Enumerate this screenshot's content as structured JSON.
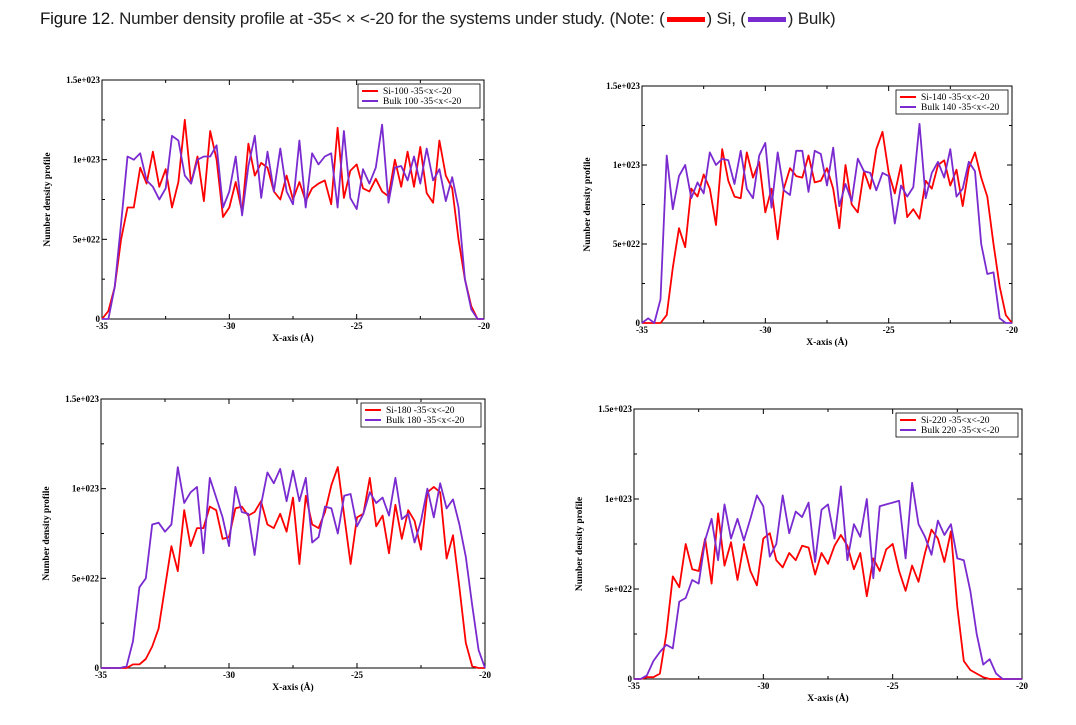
{
  "caption": {
    "figure_label": "Figure 12",
    "text_before": ". Number density profile at -35< × <-20 for the systems under study. (Note: (",
    "si_label": ") Si, (",
    "bulk_label": ") Bulk)"
  },
  "colors": {
    "si": "#ff0000",
    "bulk": "#7a2bd0"
  },
  "chart_data": [
    {
      "type": "line",
      "xlabel": "X-axis (Å)",
      "ylabel": "Number density profile",
      "xlim": [
        -35,
        -20
      ],
      "ylim": [
        0,
        1.5e+23
      ],
      "xticks": [
        -35,
        -30,
        -25,
        -20
      ],
      "xtick_labels": [
        "-35",
        "-30",
        "-25",
        "-20"
      ],
      "yticks": [
        0,
        5e+22,
        1e+23,
        1.5e+23
      ],
      "ytick_labels": [
        "0",
        "5e+022",
        "1e+023",
        "1.5e+023"
      ],
      "legend_position": "top-right",
      "x_step": 0.25,
      "value_unit": 1e+22,
      "series": [
        {
          "name": "Si-100 -35<x<-20",
          "color": "#ff0000",
          "values": [
            0,
            0.5,
            2,
            5,
            7,
            7,
            9.5,
            8.5,
            10.5,
            8.3,
            9.4,
            7,
            8.6,
            12.5,
            8.5,
            10.2,
            7.4,
            11.8,
            10,
            6.4,
            7,
            8.6,
            6.7,
            11,
            9,
            9.8,
            9.5,
            8,
            7.5,
            9,
            7.5,
            8.6,
            7.4,
            8.2,
            8.5,
            8.7,
            7.2,
            12,
            7.6,
            9.3,
            9.7,
            8.2,
            8,
            8.8,
            8,
            7.7,
            10,
            8.3,
            10.5,
            8.3,
            10.8,
            7.9,
            7.3,
            11.2,
            9,
            8.2,
            5,
            2.5,
            0.8,
            0,
            0
          ]
        },
        {
          "name": "Bulk 100 -35<x<-20",
          "color": "#7a2bd0",
          "values": [
            0,
            0,
            2,
            6,
            10.2,
            10,
            10.4,
            8.7,
            8.3,
            7.5,
            8.2,
            11.5,
            11.2,
            9,
            8.5,
            10,
            10.2,
            10.2,
            10.9,
            7,
            8,
            10.2,
            6.5,
            9.6,
            11.5,
            7.6,
            10.5,
            8,
            10.7,
            8,
            7.2,
            11.2,
            7,
            10.4,
            9.7,
            10.2,
            10.4,
            7,
            11.8,
            7.6,
            6.9,
            9.4,
            8.5,
            9.5,
            12.2,
            7.3,
            9.5,
            9.6,
            8.7,
            10.2,
            8.5,
            10.7,
            8.7,
            9.4,
            7.4,
            8.9,
            7,
            2.5,
            0.6,
            0,
            0
          ]
        }
      ]
    },
    {
      "type": "line",
      "xlabel": "X-axis (Å)",
      "ylabel": "Number density profile",
      "xlim": [
        -35,
        -20
      ],
      "ylim": [
        0,
        1.5e+23
      ],
      "xticks": [
        -35,
        -30,
        -25,
        -20
      ],
      "xtick_labels": [
        "-35",
        "-30",
        "-25",
        "-20"
      ],
      "yticks": [
        0,
        5e+22,
        1e+23,
        1.5e+23
      ],
      "ytick_labels": [
        "0",
        "5e+022",
        "1e+023",
        "1.5e+023"
      ],
      "legend_position": "top-right",
      "x_step": 0.25,
      "value_unit": 1e+22,
      "series": [
        {
          "name": "Si-140 -35<x<-20",
          "color": "#ff0000",
          "values": [
            0,
            0,
            0,
            0,
            0.5,
            3.5,
            6,
            4.8,
            8.5,
            8,
            9.4,
            8.5,
            6.2,
            11,
            9,
            8,
            7.9,
            10.8,
            9.2,
            10.2,
            7,
            8.5,
            5.3,
            8.5,
            9.8,
            9.3,
            9.2,
            10.6,
            8.9,
            9,
            9.8,
            8.5,
            6,
            10,
            7.5,
            7,
            9.6,
            8.5,
            11,
            12.1,
            9.5,
            8.2,
            10,
            6.7,
            7.2,
            6.6,
            9,
            8.5,
            10,
            10.3,
            8.7,
            9.7,
            7.4,
            9.8,
            10.8,
            9.2,
            8,
            5,
            2.3,
            0.5,
            0
          ]
        },
        {
          "name": "Bulk 140 -35<x<-20",
          "color": "#7a2bd0",
          "values": [
            0,
            0.3,
            0,
            1.5,
            10.6,
            7.2,
            9.3,
            10,
            7.9,
            8.9,
            8.2,
            10.8,
            10,
            10.4,
            10.3,
            8.8,
            10.9,
            8.5,
            7.9,
            10.6,
            11.4,
            7.3,
            10.8,
            8.4,
            8.1,
            10.9,
            10.9,
            8.3,
            10.9,
            10.7,
            8.7,
            11.1,
            7.4,
            8.8,
            7.7,
            10.4,
            9.6,
            9.5,
            8.4,
            9.5,
            9.3,
            6.3,
            8.7,
            8,
            8.6,
            12.6,
            7.9,
            9.5,
            10.2,
            9.2,
            11,
            8,
            8.5,
            10.2,
            9.6,
            5,
            3.1,
            3.2,
            0.3,
            0,
            0
          ]
        }
      ]
    },
    {
      "type": "line",
      "xlabel": "X-axis (Å)",
      "ylabel": "Number density profile",
      "xlim": [
        -35,
        -20
      ],
      "ylim": [
        0,
        1.5e+23
      ],
      "xticks": [
        -35,
        -30,
        -25,
        -20
      ],
      "xtick_labels": [
        "-35",
        "-30",
        "-25",
        "-20"
      ],
      "yticks": [
        0,
        5e+22,
        1e+23,
        1.5e+23
      ],
      "ytick_labels": [
        "0",
        "5e+022",
        "1e+023",
        "1.5e+023"
      ],
      "legend_position": "top-right",
      "x_step": 0.25,
      "value_unit": 1e+22,
      "series": [
        {
          "name": "Si-180 -35<x<-20",
          "color": "#ff0000",
          "values": [
            0,
            0,
            0,
            0,
            0,
            0.2,
            0.2,
            0.5,
            1.2,
            2.2,
            4.5,
            6.8,
            5.4,
            8.8,
            6.8,
            7.8,
            7.8,
            9,
            8.8,
            7.2,
            7.3,
            8.9,
            9,
            8.5,
            8.7,
            9.3,
            8,
            7.8,
            8.6,
            7.6,
            9.5,
            5.8,
            9.6,
            8,
            7.8,
            8.7,
            10.2,
            11.2,
            8.5,
            5.8,
            8.4,
            8.6,
            10.6,
            7.9,
            8.5,
            6.4,
            9.1,
            7.2,
            8.8,
            8.2,
            6.6,
            9.8,
            10.1,
            9.8,
            6.1,
            7.4,
            4.5,
            1.4,
            0.1,
            0,
            0
          ]
        },
        {
          "name": "Bulk 180 -35<x<-20",
          "color": "#7a2bd0",
          "values": [
            0,
            0,
            0,
            0,
            0.1,
            1.5,
            4.5,
            5,
            8,
            8.1,
            7.6,
            8,
            11.2,
            9.2,
            9.8,
            10.1,
            6.4,
            10.6,
            9.5,
            8.4,
            6.8,
            10.1,
            8.7,
            8.6,
            6.3,
            9.1,
            10.9,
            10.3,
            11.1,
            9.3,
            11,
            9.3,
            10.6,
            7,
            7.3,
            9,
            8.9,
            7.5,
            9.6,
            9.7,
            7.9,
            8.6,
            9.8,
            9.2,
            9.5,
            8.5,
            10.6,
            8.3,
            8.6,
            7,
            8.2,
            10,
            8.4,
            10.3,
            8.9,
            9.4,
            8,
            6.2,
            3.5,
            1,
            0
          ]
        }
      ]
    },
    {
      "type": "line",
      "xlabel": "X-axis (Å)",
      "ylabel": "Number density profile",
      "xlim": [
        -35,
        -20
      ],
      "ylim": [
        0,
        1.5e+23
      ],
      "xticks": [
        -35,
        -30,
        -25,
        -20
      ],
      "xtick_labels": [
        "-35",
        "-30",
        "-25",
        "-20"
      ],
      "yticks": [
        0,
        5e+22,
        1e+23,
        1.5e+23
      ],
      "ytick_labels": [
        "0",
        "5e+022",
        "1e+023",
        "1.5e+023"
      ],
      "legend_position": "top-right",
      "x_step": 0.25,
      "value_unit": 1e+22,
      "series": [
        {
          "name": "Si-220 -35<x<-20",
          "color": "#ff0000",
          "values": [
            0,
            0,
            0.1,
            0.1,
            0.3,
            2.5,
            5.7,
            5.1,
            7.5,
            6.1,
            6,
            7.8,
            5.3,
            9.2,
            6.3,
            7.6,
            5.5,
            7.5,
            6,
            5.2,
            7.8,
            8.1,
            6.6,
            6.2,
            7,
            6.6,
            7.4,
            7.3,
            5.8,
            7,
            6.4,
            7.4,
            8,
            7.4,
            6.1,
            7,
            4.6,
            6.7,
            6,
            7.2,
            7.5,
            6,
            4.9,
            6.3,
            5.4,
            7,
            8.3,
            7.8,
            6.5,
            8.2,
            4,
            1,
            0.5,
            0.3,
            0.1,
            0,
            0,
            0,
            0,
            0,
            0
          ]
        },
        {
          "name": "Bulk 220 -35<x<-20",
          "color": "#7a2bd0",
          "values": [
            0,
            0,
            0.2,
            1,
            1.5,
            1.9,
            1.7,
            4.3,
            4.5,
            5.5,
            5.3,
            7.7,
            8.9,
            6.6,
            9.7,
            7.8,
            8.9,
            7.7,
            8.9,
            10.2,
            9.6,
            6.8,
            7.5,
            10.2,
            8.1,
            9.3,
            9,
            9.8,
            6.5,
            9.4,
            9.7,
            7.8,
            10.7,
            6.6,
            8.6,
            7.9,
            10,
            5.6,
            9.6,
            9.7,
            9.8,
            9.9,
            6.7,
            10.9,
            8.6,
            7.9,
            6.9,
            8.8,
            8,
            8.6,
            6.7,
            6.6,
            4.9,
            2.5,
            0.8,
            1.1,
            0.3,
            0,
            0,
            0,
            0
          ]
        }
      ]
    }
  ]
}
